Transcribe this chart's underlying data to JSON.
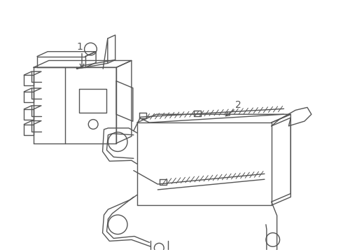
{
  "bg_color": "#ffffff",
  "line_color": "#555555",
  "line_width": 1.0,
  "label1_text": "1",
  "label2_text": "2",
  "figsize": [
    4.9,
    3.6
  ],
  "dpi": 100
}
